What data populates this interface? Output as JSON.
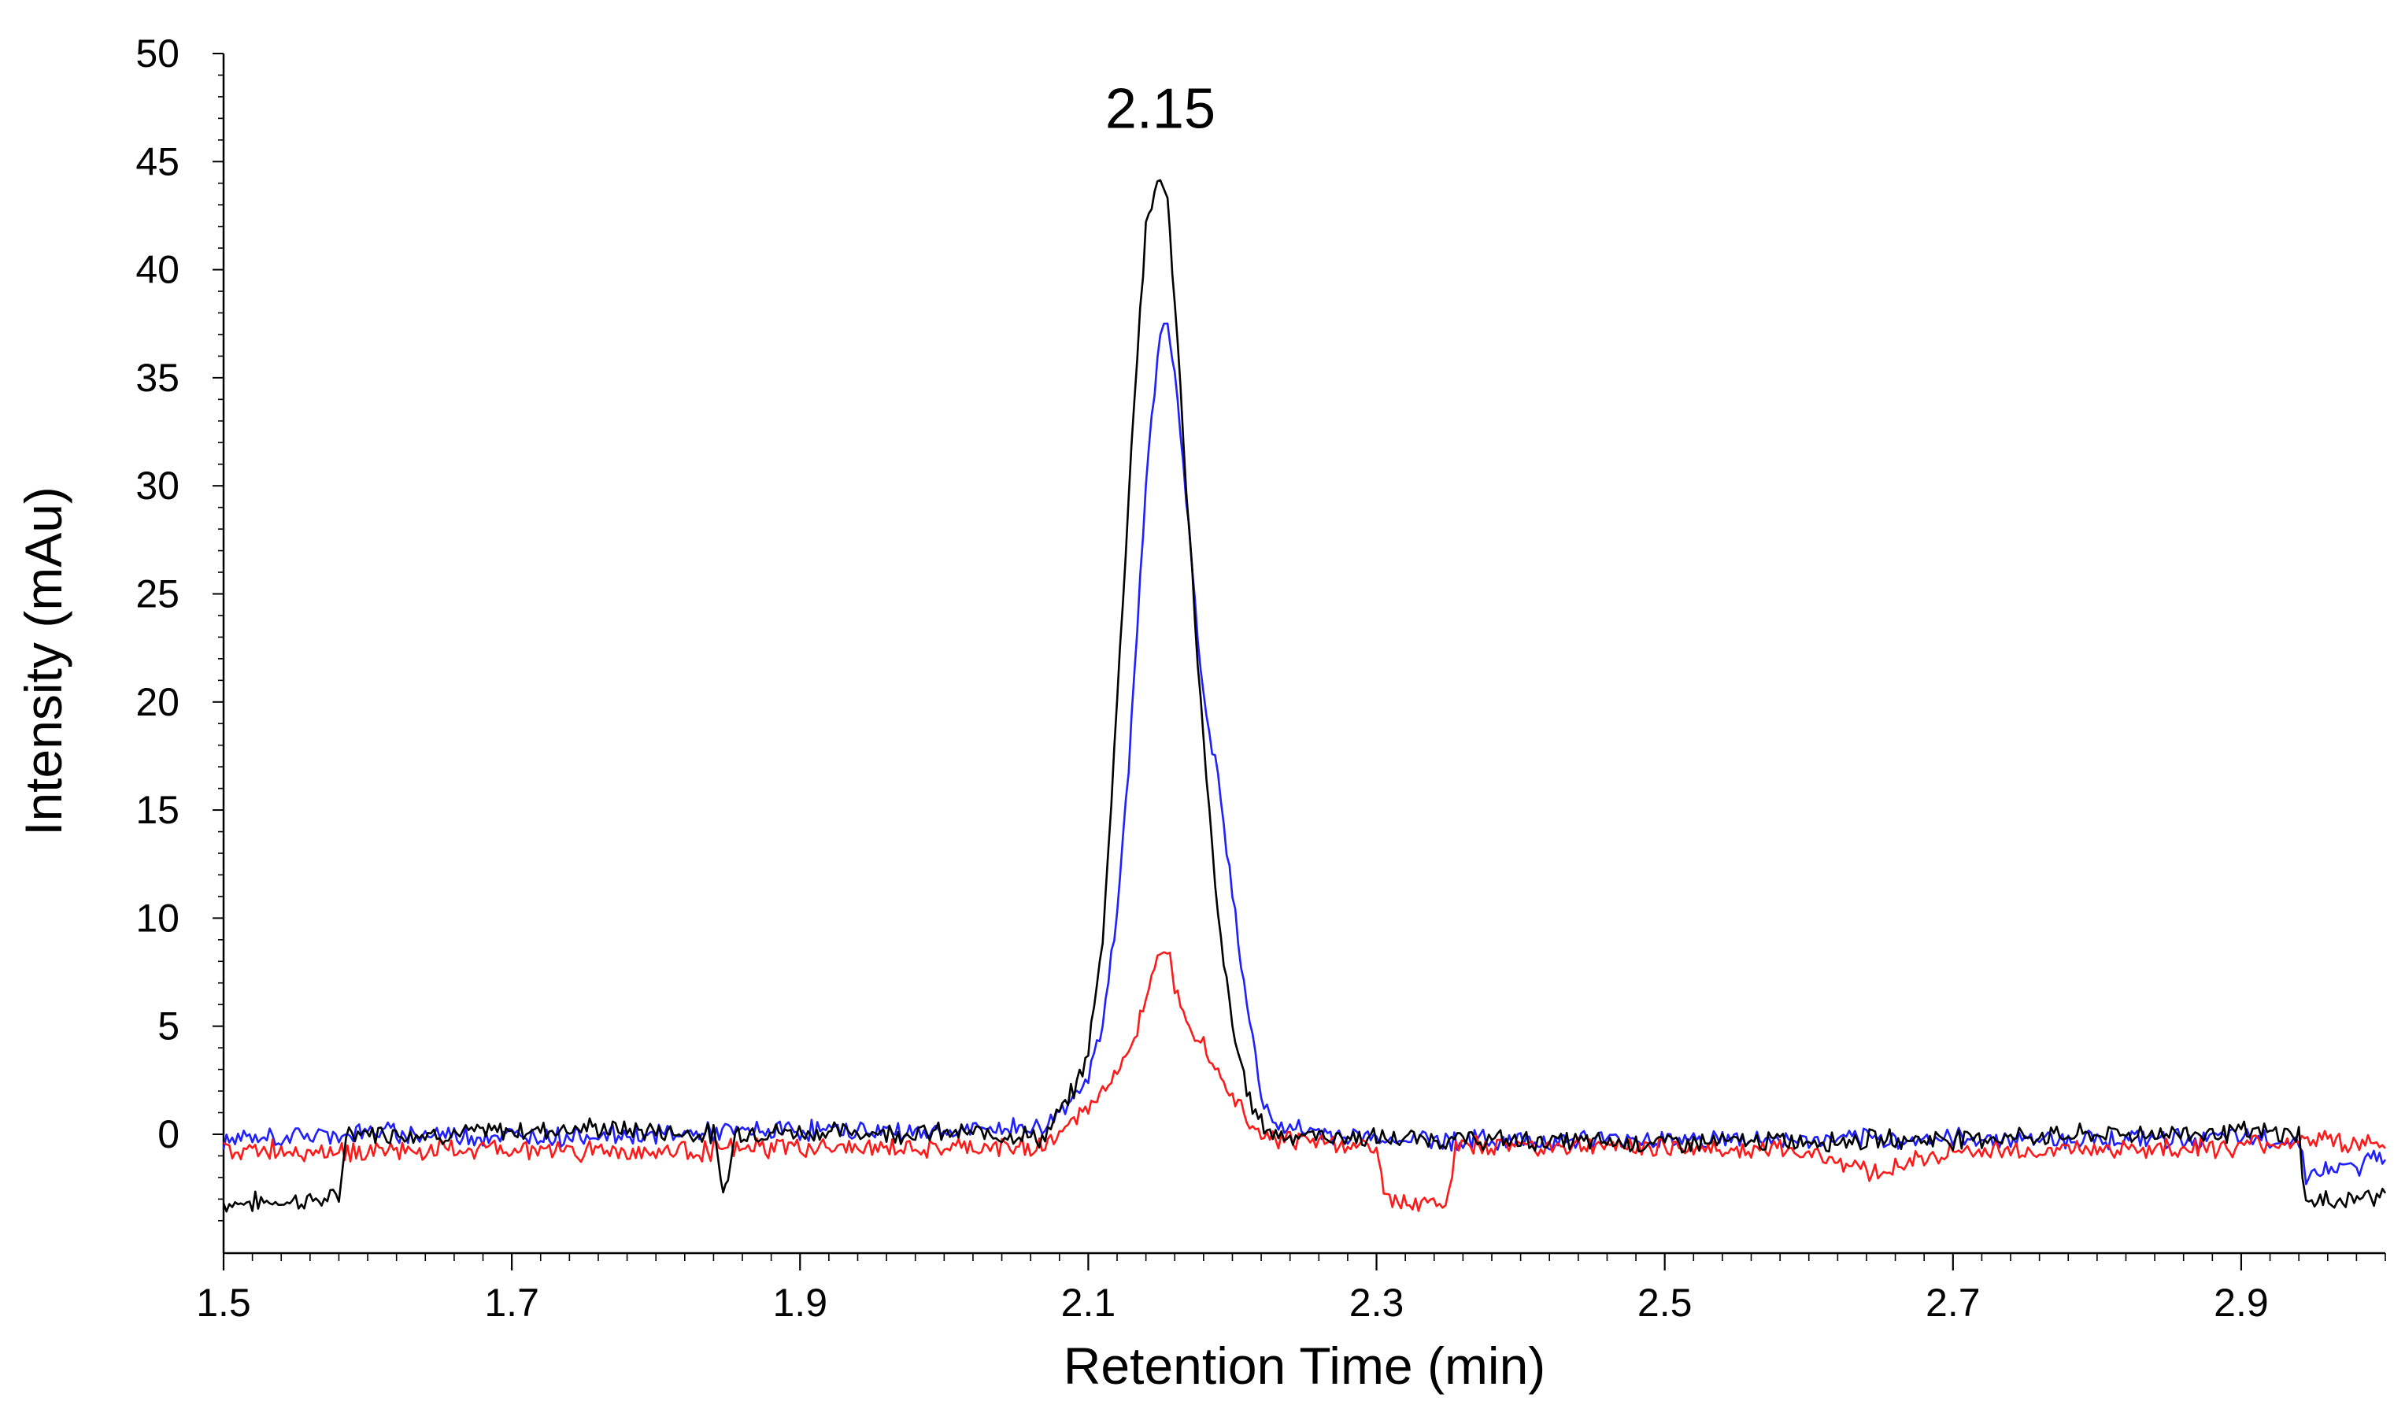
{
  "chart_data": {
    "type": "line",
    "title": "",
    "xlabel": "Retention Time (min)",
    "ylabel": "Intensity (mAu)",
    "xlim": [
      1.5,
      3.0
    ],
    "ylim": [
      -5.5,
      50
    ],
    "x_ticks": [
      1.5,
      1.7,
      1.9,
      2.1,
      2.3,
      2.5,
      2.7,
      2.9
    ],
    "x_tick_labels": [
      "1.5",
      "1.7",
      "1.9",
      "2.1",
      "2.3",
      "2.5",
      "2.7",
      "2.9"
    ],
    "y_ticks": [
      0,
      5,
      10,
      15,
      20,
      25,
      30,
      35,
      40,
      45,
      50
    ],
    "y_tick_labels": [
      "0",
      "5",
      "10",
      "15",
      "20",
      "25",
      "30",
      "35",
      "40",
      "45",
      "50"
    ],
    "grid": false,
    "annotations": [
      {
        "text": "2.15",
        "x": 2.15,
        "y": 47.5
      }
    ],
    "series": [
      {
        "name": "black trace",
        "color": "#000000",
        "x": [
          1.5,
          1.58,
          1.585,
          1.65,
          1.75,
          1.84,
          1.845,
          1.85,
          1.855,
          1.95,
          2.05,
          2.07,
          2.08,
          2.09,
          2.1,
          2.11,
          2.12,
          2.13,
          2.14,
          2.15,
          2.155,
          2.16,
          2.17,
          2.18,
          2.19,
          2.2,
          2.21,
          2.22,
          2.23,
          2.3,
          2.4,
          2.5,
          2.6,
          2.7,
          2.8,
          2.9,
          2.94,
          2.945,
          3.0
        ],
        "y": [
          -3.2,
          -3.0,
          0.1,
          0.0,
          0.3,
          0.0,
          -2.3,
          -2.2,
          0.1,
          0.1,
          0.0,
          -0.2,
          1.0,
          2.0,
          3.8,
          9.0,
          20.0,
          32.0,
          42.0,
          44.5,
          43.0,
          38.5,
          28.0,
          18.0,
          10.0,
          5.0,
          2.0,
          0.5,
          0.0,
          -0.2,
          -0.3,
          -0.4,
          -0.3,
          -0.2,
          0.0,
          0.1,
          0.0,
          -3.2,
          -2.8
        ]
      },
      {
        "name": "blue trace",
        "color": "#1f1fff",
        "x": [
          1.5,
          1.6,
          1.7,
          1.8,
          1.9,
          2.0,
          2.05,
          2.07,
          2.08,
          2.09,
          2.1,
          2.11,
          2.12,
          2.13,
          2.14,
          2.15,
          2.155,
          2.16,
          2.17,
          2.18,
          2.19,
          2.2,
          2.21,
          2.22,
          2.23,
          2.3,
          2.4,
          2.5,
          2.6,
          2.7,
          2.8,
          2.9,
          2.94,
          2.945,
          2.98,
          3.0
        ],
        "y": [
          -0.3,
          0.1,
          -0.1,
          0.0,
          0.2,
          0.1,
          0.3,
          0.3,
          1.0,
          1.8,
          2.8,
          5.0,
          10.0,
          19.0,
          30.0,
          37.5,
          37.8,
          35.0,
          28.0,
          20.0,
          16.5,
          11.0,
          6.0,
          2.0,
          0.3,
          -0.2,
          -0.3,
          -0.2,
          -0.3,
          -0.2,
          -0.2,
          -0.2,
          -0.3,
          -1.8,
          -1.5,
          -1.0
        ]
      },
      {
        "name": "red trace",
        "color": "#ff1a1a",
        "x": [
          1.5,
          1.6,
          1.7,
          1.8,
          1.9,
          2.0,
          2.05,
          2.07,
          2.08,
          2.09,
          2.1,
          2.11,
          2.12,
          2.13,
          2.14,
          2.15,
          2.155,
          2.16,
          2.17,
          2.18,
          2.19,
          2.2,
          2.21,
          2.22,
          2.23,
          2.3,
          2.305,
          2.325,
          2.35,
          2.355,
          2.4,
          2.5,
          2.6,
          2.62,
          2.65,
          2.67,
          2.7,
          2.8,
          2.9,
          2.95,
          3.0
        ],
        "y": [
          -0.7,
          -0.8,
          -0.7,
          -0.8,
          -0.6,
          -0.7,
          -0.6,
          -0.5,
          0.0,
          0.6,
          1.2,
          2.0,
          3.0,
          4.2,
          6.0,
          8.5,
          8.8,
          7.0,
          5.2,
          4.2,
          3.0,
          1.8,
          0.8,
          0.1,
          -0.2,
          -0.6,
          -2.8,
          -3.3,
          -3.0,
          -0.6,
          -0.5,
          -0.6,
          -0.8,
          -1.2,
          -1.8,
          -1.3,
          -0.8,
          -0.7,
          -0.6,
          -0.2,
          -0.6
        ]
      }
    ]
  }
}
